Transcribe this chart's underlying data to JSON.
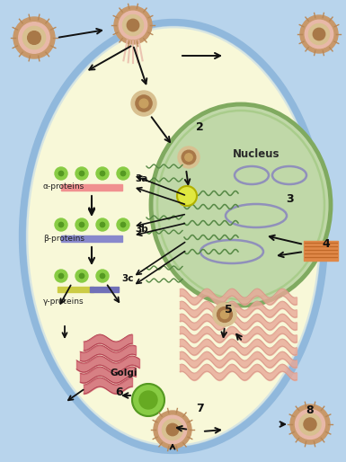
{
  "bg_outer": "#b8d4ec",
  "bg_cell": "#f8f8d8",
  "bg_cell_border": "#90b8dc",
  "nucleus_color": "#c0d8a8",
  "nucleus_border": "#80aa60",
  "nucleus_inner_border": "#a0c880",
  "er_color": "#e8b0a0",
  "golgi_color": "#cc5868",
  "label_nucleus": "Nucleus",
  "label_alpha": "α-proteins",
  "label_beta": "β-proteins",
  "label_gamma": "γ-proteins",
  "label_golgi": "Golgi",
  "virion_outer": "#c8986a",
  "virion_pink": "#e8b8a8",
  "virion_inner": "#d8c090",
  "virion_core": "#a87848",
  "virion_spikes": "#b88858",
  "green_blob": "#88cc44",
  "green_dark": "#559922",
  "yellow_dot": "#e0e840",
  "yellow_dot_border": "#b0b000",
  "capsid_green": "#88cc00",
  "arrow_color": "#111111",
  "alpha_bar_color": "#f09090",
  "beta_bar_color": "#8888cc",
  "gamma_bar1": "#cccc44",
  "gamma_bar2": "#7070b8",
  "wavy_color": "#558844",
  "dna_oval_color": "#9090bb",
  "dna_block_color": "#e08848",
  "dna_block_lines": "#c06828",
  "er_pink": "#e8a898",
  "er_border": "#cc8878"
}
